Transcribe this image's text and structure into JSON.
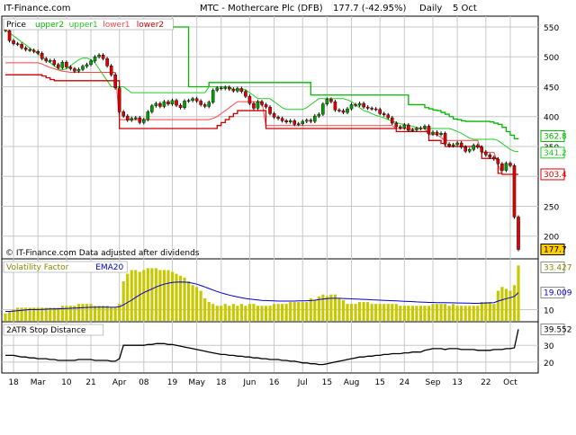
{
  "header": {
    "site": "IT-Finance.com",
    "title": "MTC - Mothercare Plc (DFB)",
    "quote": "177.7 (-42.95%)",
    "period": "Daily",
    "date": "5 Oct"
  },
  "colors": {
    "bull": "#00a000",
    "bear": "#e00000",
    "upper2": "#00b800",
    "upper1": "#22cc22",
    "lower1": "#ff4444",
    "lower2": "#cc0000",
    "vf_bar": "#c8c800",
    "ema": "#0000cc",
    "grid": "#c8c8c8"
  },
  "x_axis": {
    "ticks": [
      "18",
      "Mar",
      "10",
      "21",
      "Apr",
      "08",
      "19",
      "May",
      "18",
      "Jun",
      "16",
      "Jul",
      "15",
      "Aug",
      "15",
      "24",
      "Sep",
      "13",
      "22",
      "Oct"
    ]
  },
  "chart_data": [
    {
      "type": "candlestick",
      "name": "price",
      "legend": [
        "Price",
        "upper2",
        "upper1",
        "lower1",
        "lower2"
      ],
      "ylim": [
        165,
        565
      ],
      "y_ticks": [
        200,
        250,
        300,
        350,
        400,
        450,
        500,
        550
      ],
      "last_labels": {
        "upper2": "362.8",
        "upper1": "341.2",
        "lower1": "303.4",
        "close": "177.7"
      },
      "annotation": "© IT-Finance.com  Data adjusted after dividends",
      "closes": [
        544,
        527,
        522,
        521,
        515,
        512,
        511,
        509,
        506,
        497,
        493,
        494,
        487,
        482,
        491,
        483,
        480,
        476,
        479,
        484,
        487,
        493,
        500,
        503,
        497,
        485,
        470,
        448,
        408,
        401,
        394,
        397,
        398,
        390,
        395,
        408,
        418,
        422,
        417,
        425,
        421,
        427,
        419,
        415,
        426,
        427,
        430,
        426,
        420,
        417,
        424,
        444,
        448,
        447,
        449,
        446,
        443,
        447,
        442,
        434,
        422,
        414,
        425,
        420,
        416,
        405,
        399,
        397,
        393,
        391,
        393,
        387,
        388,
        392,
        394,
        392,
        401,
        404,
        421,
        429,
        425,
        411,
        410,
        407,
        413,
        420,
        419,
        422,
        416,
        414,
        413,
        412,
        405,
        403,
        398,
        389,
        383,
        381,
        386,
        377,
        378,
        380,
        381,
        384,
        371,
        374,
        370,
        372,
        354,
        351,
        353,
        356,
        349,
        342,
        345,
        352,
        349,
        341,
        336,
        332,
        329,
        321,
        310,
        322,
        318,
        232,
        177.7
      ],
      "upper2": [
        553,
        553,
        553,
        553,
        550,
        550,
        550,
        550,
        550,
        550,
        550,
        550,
        550,
        550,
        550,
        550,
        550,
        550,
        550,
        550,
        550,
        550,
        550,
        550,
        550,
        550,
        550,
        550,
        550,
        550,
        550,
        550,
        550,
        550,
        550,
        550,
        550,
        550,
        550,
        550,
        550,
        550,
        550,
        550,
        550,
        450,
        450,
        450,
        450,
        450,
        457,
        457,
        457,
        457,
        457,
        457,
        457,
        457,
        457,
        457,
        457,
        457,
        457,
        457,
        457,
        457,
        457,
        457,
        457,
        457,
        457,
        457,
        457,
        457,
        457,
        436,
        436,
        436,
        436,
        436,
        436,
        436,
        436,
        436,
        436,
        436,
        436,
        436,
        436,
        436,
        436,
        436,
        436,
        436,
        436,
        436,
        436,
        436,
        436,
        420,
        420,
        420,
        420,
        415,
        413,
        411,
        410,
        407,
        404,
        400,
        396,
        395,
        393,
        392,
        392,
        392,
        392,
        392,
        392,
        391,
        389,
        387,
        382,
        375,
        369,
        363,
        362.8
      ],
      "upper1": [
        545,
        540,
        535,
        530,
        525,
        520,
        515,
        510,
        505,
        500,
        495,
        490,
        485,
        480,
        478,
        480,
        485,
        490,
        495,
        498,
        498,
        495,
        490,
        480,
        470,
        460,
        450,
        450,
        450,
        450,
        445,
        440,
        440,
        440,
        440,
        440,
        440,
        440,
        440,
        440,
        440,
        440,
        440,
        440,
        440,
        440,
        440,
        440,
        440,
        440,
        450,
        450,
        450,
        450,
        450,
        450,
        445,
        445,
        445,
        445,
        440,
        435,
        430,
        430,
        430,
        430,
        425,
        420,
        415,
        412,
        412,
        412,
        412,
        412,
        415,
        420,
        425,
        430,
        430,
        430,
        430,
        430,
        430,
        430,
        428,
        425,
        420,
        415,
        410,
        408,
        405,
        402,
        400,
        398,
        395,
        392,
        390,
        388,
        387,
        385,
        384,
        382,
        380,
        380,
        380,
        380,
        380,
        380,
        380,
        380,
        378,
        375,
        372,
        368,
        364,
        362,
        362,
        362,
        362,
        362,
        362,
        360,
        355,
        350,
        345,
        342,
        341.2
      ],
      "lower1": [
        490,
        490,
        490,
        490,
        490,
        490,
        490,
        490,
        490,
        488,
        485,
        482,
        480,
        478,
        476,
        475,
        474,
        474,
        474,
        474,
        474,
        474,
        474,
        474,
        474,
        474,
        474,
        474,
        395,
        395,
        395,
        395,
        395,
        395,
        395,
        395,
        395,
        395,
        395,
        395,
        395,
        395,
        395,
        395,
        395,
        395,
        395,
        395,
        395,
        395,
        395,
        397,
        400,
        405,
        410,
        415,
        420,
        425,
        425,
        425,
        425,
        425,
        425,
        425,
        385,
        385,
        385,
        385,
        385,
        385,
        385,
        385,
        385,
        385,
        385,
        385,
        385,
        385,
        385,
        385,
        385,
        385,
        385,
        385,
        385,
        385,
        385,
        385,
        385,
        385,
        385,
        385,
        385,
        385,
        385,
        385,
        380,
        380,
        380,
        380,
        380,
        380,
        380,
        380,
        370,
        370,
        370,
        365,
        360,
        360,
        360,
        360,
        360,
        360,
        360,
        360,
        360,
        340,
        340,
        340,
        340,
        320,
        303.4,
        303.4,
        303.4,
        303.4,
        303.4
      ],
      "lower2": [
        470,
        470,
        470,
        470,
        470,
        470,
        470,
        470,
        470,
        468,
        465,
        462,
        460,
        460,
        460,
        460,
        460,
        460,
        460,
        460,
        460,
        460,
        460,
        460,
        460,
        460,
        460,
        460,
        380,
        380,
        380,
        380,
        380,
        380,
        380,
        380,
        380,
        380,
        380,
        380,
        380,
        380,
        380,
        380,
        380,
        380,
        380,
        380,
        380,
        380,
        380,
        380,
        385,
        390,
        395,
        400,
        405,
        410,
        410,
        410,
        410,
        410,
        410,
        410,
        380,
        380,
        380,
        380,
        380,
        380,
        380,
        380,
        380,
        380,
        380,
        380,
        380,
        380,
        380,
        380,
        380,
        380,
        380,
        380,
        380,
        380,
        380,
        380,
        380,
        380,
        380,
        380,
        380,
        380,
        380,
        380,
        375,
        375,
        375,
        375,
        375,
        375,
        375,
        375,
        360,
        360,
        360,
        355,
        350,
        350,
        350,
        350,
        350,
        350,
        350,
        350,
        350,
        330,
        330,
        330,
        330,
        305,
        303.4,
        303.4,
        303.4,
        303.4,
        303.4
      ]
    },
    {
      "type": "bar",
      "name": "volatility",
      "legend": [
        "Volatility Factor",
        "EMA20"
      ],
      "ylim": [
        4,
        36
      ],
      "y_ticks": [
        10
      ],
      "last_labels": {
        "vf": "33.427",
        "ema": "19.009"
      },
      "values": [
        8,
        9,
        10,
        11,
        11,
        11,
        11,
        11,
        11,
        11,
        11,
        11,
        11,
        11,
        12,
        12,
        12,
        12,
        13,
        13,
        13,
        13,
        12,
        12,
        12,
        12,
        11,
        11,
        13,
        25,
        29,
        31,
        31,
        30,
        31,
        32,
        32,
        32,
        31,
        31,
        31,
        30,
        29,
        28,
        27,
        25,
        23,
        22,
        20,
        16,
        14,
        13,
        12,
        12,
        13,
        12,
        13,
        12,
        13,
        12,
        13,
        13,
        12,
        12,
        12,
        12,
        13,
        13,
        13,
        13,
        14,
        14,
        14,
        14,
        14,
        16,
        15,
        17,
        18,
        17,
        18,
        18,
        16,
        15,
        13,
        13,
        13,
        14,
        14,
        14,
        13,
        13,
        13,
        13,
        13,
        13,
        13,
        12,
        12,
        12,
        12,
        12,
        12,
        12,
        12,
        13,
        13,
        13,
        13,
        12,
        13,
        12,
        12,
        12,
        12,
        12,
        12,
        14,
        14,
        14,
        13,
        20,
        22,
        21,
        20,
        23,
        33.427
      ],
      "ema": [
        9,
        9,
        9.2,
        9.4,
        9.6,
        9.8,
        10,
        10,
        10,
        10.1,
        10.2,
        10.3,
        10.3,
        10.4,
        10.5,
        10.6,
        10.7,
        10.8,
        10.9,
        11,
        11.1,
        11.2,
        11.2,
        11.3,
        11.3,
        11.3,
        11.2,
        11.2,
        11.5,
        12.5,
        13.8,
        15,
        16.5,
        17.8,
        19,
        20,
        21,
        22,
        22.8,
        23.5,
        24,
        24.4,
        24.6,
        24.7,
        24.6,
        24.4,
        24,
        23.5,
        22.8,
        22,
        21.2,
        20.4,
        19.6,
        18.9,
        18.3,
        17.7,
        17.2,
        16.7,
        16.3,
        15.9,
        15.6,
        15.3,
        15.1,
        14.9,
        14.8,
        14.7,
        14.6,
        14.5,
        14.5,
        14.5,
        14.5,
        14.5,
        14.6,
        14.6,
        14.7,
        14.8,
        15,
        15.3,
        15.6,
        15.8,
        16,
        16,
        16,
        15.9,
        15.8,
        15.7,
        15.6,
        15.5,
        15.4,
        15.3,
        15.2,
        15.1,
        15,
        14.9,
        14.8,
        14.7,
        14.6,
        14.5,
        14.4,
        14.3,
        14.2,
        14.1,
        14,
        13.9,
        13.8,
        13.8,
        13.7,
        13.7,
        13.7,
        13.6,
        13.6,
        13.5,
        13.5,
        13.4,
        13.4,
        13.3,
        13.3,
        13.4,
        13.5,
        13.6,
        13.7,
        14.5,
        15.2,
        15.8,
        16.3,
        17,
        19.009
      ]
    },
    {
      "type": "line",
      "name": "stop-distance",
      "legend": [
        "2ATR Stop Distance"
      ],
      "ylim": [
        14,
        43
      ],
      "y_ticks": [
        20,
        30
      ],
      "last_labels": {
        "value": "39.552"
      },
      "values": [
        24,
        24,
        24,
        23.5,
        23,
        23,
        22.5,
        22.5,
        22,
        22,
        22,
        21.5,
        21.5,
        21,
        21,
        21,
        21,
        21,
        21.5,
        21.5,
        21.5,
        21.5,
        21,
        21,
        21,
        21,
        20.5,
        20.5,
        22,
        30,
        30,
        30,
        30,
        30,
        30,
        30.5,
        30.5,
        31,
        31,
        31,
        30.5,
        30.5,
        30,
        29.5,
        29,
        28.5,
        28,
        27.5,
        27,
        26.5,
        26,
        25.5,
        25,
        24.5,
        24.5,
        24,
        24,
        23.5,
        23.5,
        23,
        23,
        22.5,
        22.5,
        22,
        22,
        21.5,
        21.5,
        21.5,
        21,
        21,
        20.5,
        20.5,
        20,
        19.5,
        19.5,
        19,
        19,
        18.5,
        18.5,
        19,
        19.5,
        20,
        20.5,
        21,
        21.5,
        22,
        22.5,
        23,
        23,
        23.5,
        23.5,
        24,
        24,
        24.5,
        24.5,
        25,
        25,
        25,
        25.5,
        25.5,
        26,
        26,
        26,
        27,
        27.5,
        28,
        28,
        28,
        27.5,
        28,
        28,
        28,
        27.5,
        27.5,
        27.5,
        27.5,
        27,
        27,
        27,
        27,
        27.5,
        27.5,
        27.5,
        28,
        28,
        28.5,
        39.552
      ]
    }
  ]
}
